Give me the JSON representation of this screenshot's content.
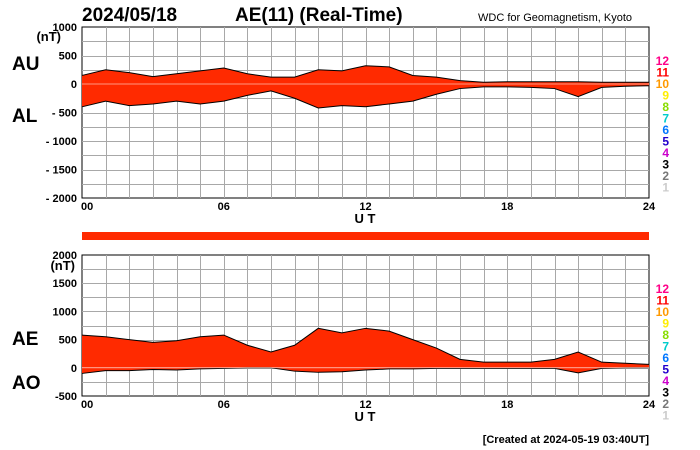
{
  "header": {
    "date": "2024/05/18",
    "title": "AE(11) (Real-Time)",
    "source": "WDC for Geomagnetism, Kyoto"
  },
  "footer": {
    "created": "[Created at 2024-05-19 03:40UT]"
  },
  "colors": {
    "fill": "#ff2a00",
    "line": "#000000",
    "grid": "#a8a8a8",
    "bar": "#ff2a00"
  },
  "station_levels": [
    {
      "label": "12",
      "color": "#ff0088"
    },
    {
      "label": "11",
      "color": "#ff0000"
    },
    {
      "label": "10",
      "color": "#ff9900"
    },
    {
      "label": "9",
      "color": "#ffee00"
    },
    {
      "label": "8",
      "color": "#88dd00"
    },
    {
      "label": "7",
      "color": "#00cccc"
    },
    {
      "label": "6",
      "color": "#0077ff"
    },
    {
      "label": "5",
      "color": "#2200cc"
    },
    {
      "label": "4",
      "color": "#cc00cc"
    },
    {
      "label": "3",
      "color": "#000000"
    },
    {
      "label": "2",
      "color": "#777777"
    },
    {
      "label": "1",
      "color": "#cccccc"
    }
  ],
  "chart_data": [
    {
      "type": "area",
      "upper_label": "AU",
      "lower_label": "AL",
      "ylabel": "(nT)",
      "xlabel": "U T",
      "xlim": [
        0,
        24
      ],
      "ylim": [
        -2000,
        1000
      ],
      "xticks": [
        "00",
        "06",
        "12",
        "18",
        "24"
      ],
      "yticks": [
        "1000",
        "500",
        "0",
        "- 500",
        "- 1000",
        "- 1500",
        "- 2000"
      ],
      "grid": true,
      "x": [
        0,
        1,
        2,
        3,
        4,
        5,
        6,
        7,
        8,
        9,
        10,
        11,
        12,
        13,
        14,
        15,
        16,
        17,
        18,
        19,
        20,
        21,
        22,
        23,
        24
      ],
      "series": [
        {
          "name": "AU",
          "values": [
            150,
            250,
            200,
            130,
            180,
            230,
            280,
            180,
            120,
            120,
            250,
            230,
            320,
            300,
            150,
            120,
            60,
            30,
            40,
            40,
            40,
            40,
            30,
            30,
            30
          ]
        },
        {
          "name": "AL",
          "values": [
            -400,
            -300,
            -380,
            -350,
            -300,
            -350,
            -300,
            -200,
            -120,
            -250,
            -420,
            -380,
            -400,
            -350,
            -300,
            -180,
            -80,
            -50,
            -50,
            -60,
            -80,
            -220,
            -60,
            -40,
            -30
          ]
        }
      ]
    },
    {
      "type": "area",
      "upper_label": "AE",
      "lower_label": "AO",
      "ylabel": "(nT)",
      "xlabel": "U T",
      "xlim": [
        0,
        24
      ],
      "ylim": [
        -500,
        2000
      ],
      "xticks": [
        "00",
        "06",
        "12",
        "18",
        "24"
      ],
      "yticks": [
        "2000",
        "1500",
        "1000",
        "500",
        "0",
        "-500"
      ],
      "grid": true,
      "x": [
        0,
        1,
        2,
        3,
        4,
        5,
        6,
        7,
        8,
        9,
        10,
        11,
        12,
        13,
        14,
        15,
        16,
        17,
        18,
        19,
        20,
        21,
        22,
        23,
        24
      ],
      "series": [
        {
          "name": "AE",
          "values": [
            580,
            550,
            500,
            450,
            480,
            550,
            580,
            400,
            280,
            400,
            700,
            620,
            700,
            650,
            500,
            350,
            150,
            100,
            100,
            100,
            150,
            280,
            100,
            80,
            60
          ]
        },
        {
          "name": "AO",
          "values": [
            -100,
            -50,
            -50,
            -30,
            -40,
            -20,
            -10,
            0,
            0,
            -60,
            -80,
            -70,
            -40,
            -20,
            -20,
            -10,
            -10,
            -10,
            -10,
            -10,
            -10,
            -90,
            -10,
            0,
            0
          ]
        }
      ]
    }
  ]
}
